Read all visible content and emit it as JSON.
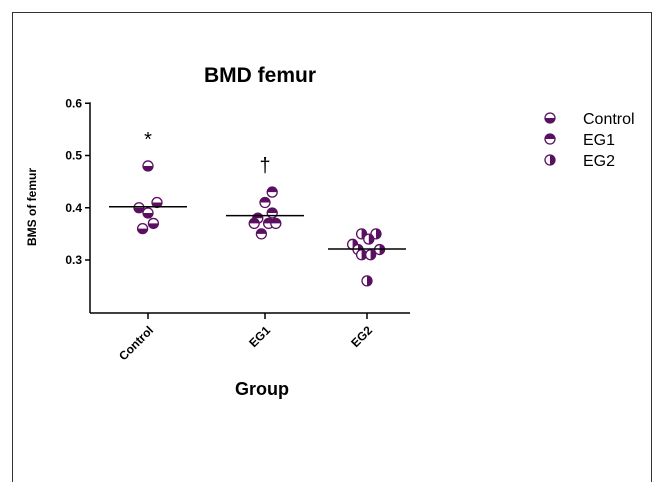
{
  "chart_data": {
    "type": "scatter",
    "title": "BMD femur",
    "xlabel": "Group",
    "ylabel": "BMS of femur",
    "categories": [
      "Control",
      "EG1",
      "EG2"
    ],
    "yticks": [
      "0.6",
      "0.5",
      "0.4",
      "0.3"
    ],
    "ylim": [
      0.2,
      0.6
    ],
    "grid": false,
    "legend_position": "top-right",
    "marker_color": "#5a1060",
    "series": [
      {
        "name": "Control",
        "category": "Control",
        "values": [
          0.48,
          0.4,
          0.41,
          0.39,
          0.36,
          0.37
        ],
        "offsets": [
          0,
          -0.5,
          0.5,
          0,
          -0.3,
          0.3
        ],
        "mean": 0.402,
        "annotation": "*",
        "marker": "bottom-half"
      },
      {
        "name": "EG1",
        "category": "EG1",
        "values": [
          0.43,
          0.41,
          0.39,
          0.38,
          0.37,
          0.37,
          0.37,
          0.35
        ],
        "offsets": [
          0.4,
          0,
          0.4,
          -0.4,
          -0.6,
          0.2,
          0.6,
          -0.2
        ],
        "mean": 0.385,
        "annotation": "†",
        "marker": "top-half"
      },
      {
        "name": "EG2",
        "category": "EG2",
        "values": [
          0.35,
          0.35,
          0.34,
          0.33,
          0.32,
          0.32,
          0.31,
          0.31,
          0.26
        ],
        "offsets": [
          -0.3,
          0.5,
          0.1,
          -0.8,
          -0.5,
          0.7,
          -0.3,
          0.2,
          0
        ],
        "mean": 0.321,
        "annotation": "",
        "marker": "right-half"
      }
    ]
  }
}
